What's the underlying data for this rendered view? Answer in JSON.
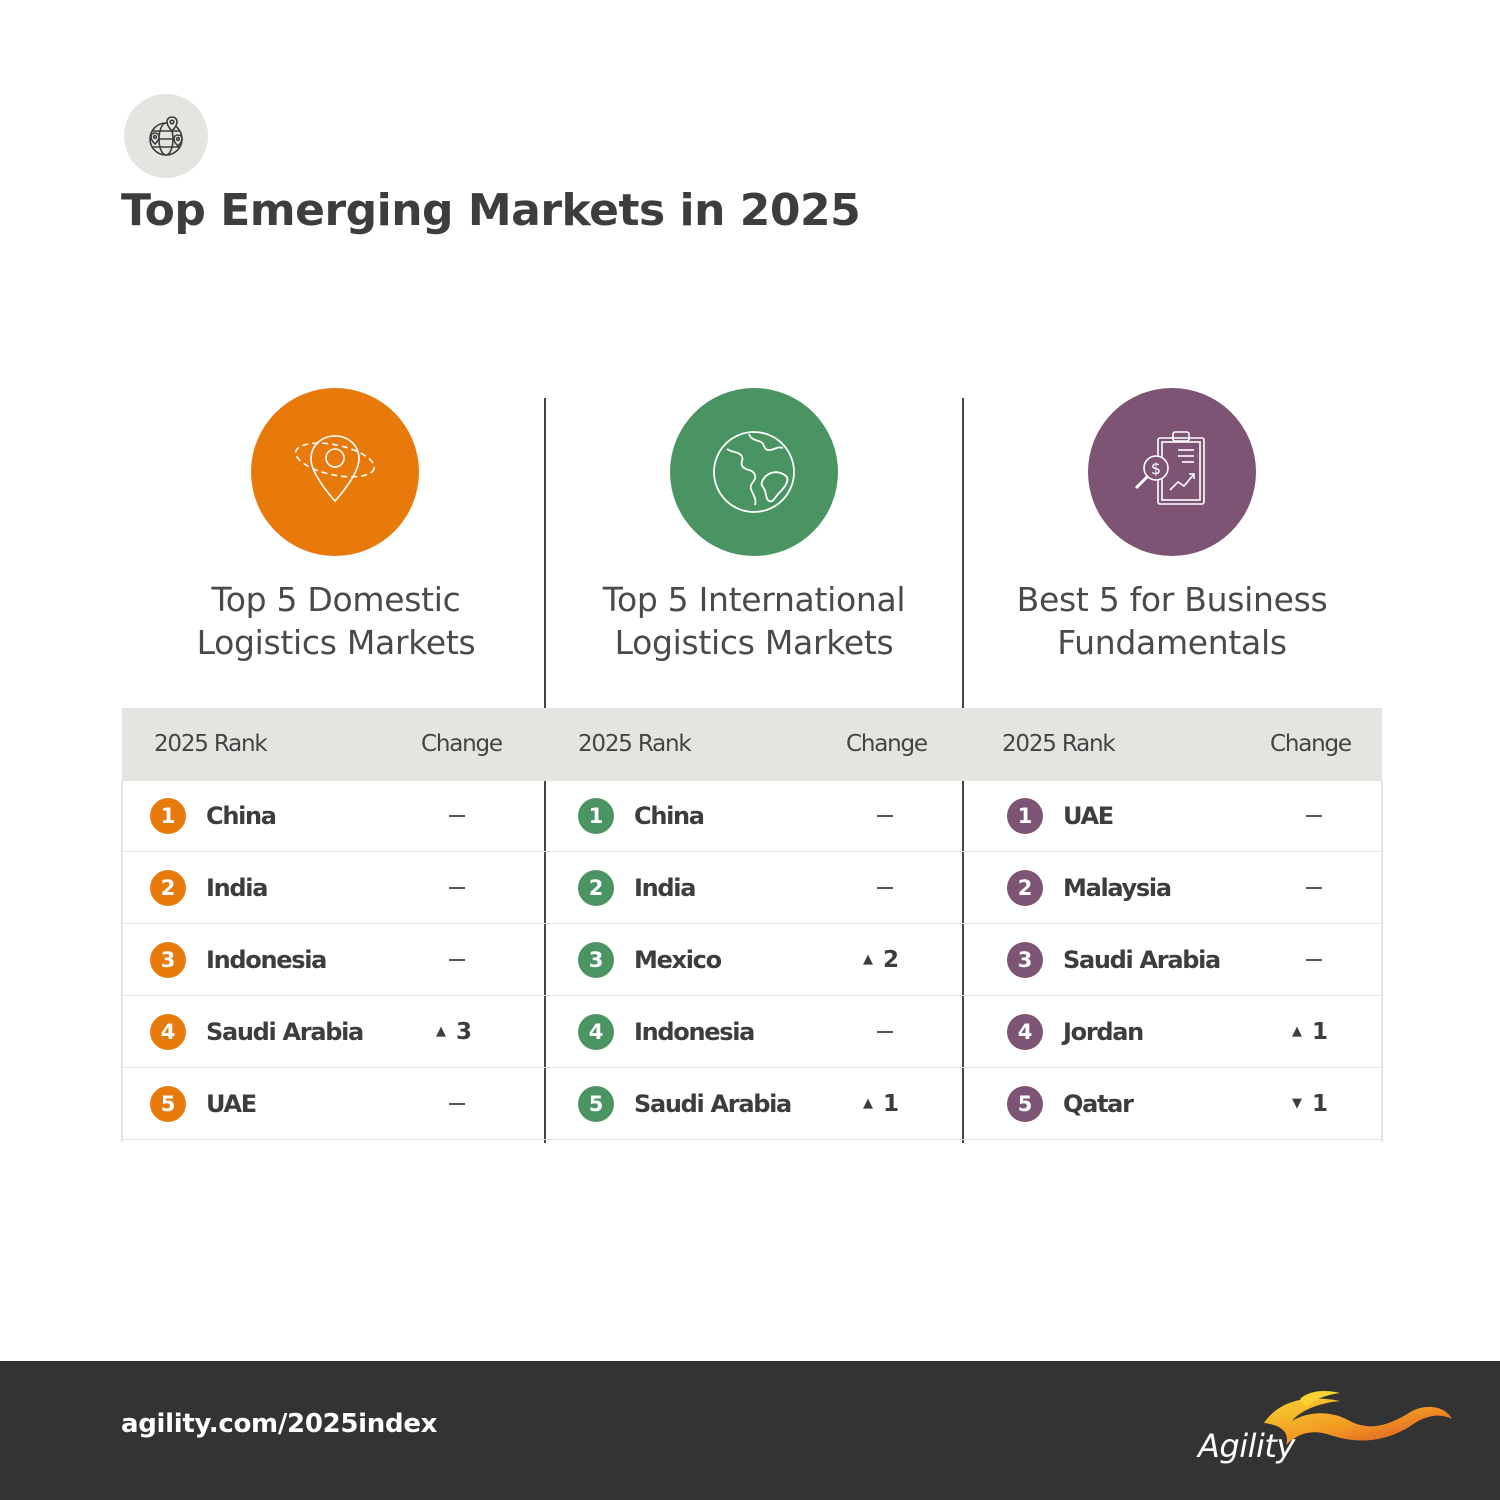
{
  "page": {
    "title": "Top Emerging Markets in 2025"
  },
  "footer": {
    "url": "agility.com/2025index",
    "logo_text": "Agility"
  },
  "columns": [
    {
      "id": "domestic",
      "color": "#e87a0c",
      "icon": "location-pin-orbit-icon",
      "heading_line1": "Top 5 Domestic",
      "heading_line2": "Logistics Markets",
      "rank_header": "2025 Rank",
      "change_header": "Change",
      "rows": [
        {
          "rank": "1",
          "country": "China",
          "change": "none",
          "change_value": ""
        },
        {
          "rank": "2",
          "country": "India",
          "change": "none",
          "change_value": ""
        },
        {
          "rank": "3",
          "country": "Indonesia",
          "change": "none",
          "change_value": ""
        },
        {
          "rank": "4",
          "country": "Saudi Arabia",
          "change": "up",
          "change_value": "3"
        },
        {
          "rank": "5",
          "country": "UAE",
          "change": "none",
          "change_value": ""
        }
      ]
    },
    {
      "id": "international",
      "color": "#4a9363",
      "icon": "globe-icon",
      "heading_line1": "Top 5 International",
      "heading_line2": "Logistics Markets",
      "rank_header": "2025 Rank",
      "change_header": "Change",
      "rows": [
        {
          "rank": "1",
          "country": "China",
          "change": "none",
          "change_value": ""
        },
        {
          "rank": "2",
          "country": "India",
          "change": "none",
          "change_value": ""
        },
        {
          "rank": "3",
          "country": "Mexico",
          "change": "up",
          "change_value": "2"
        },
        {
          "rank": "4",
          "country": "Indonesia",
          "change": "none",
          "change_value": ""
        },
        {
          "rank": "5",
          "country": "Saudi Arabia",
          "change": "up",
          "change_value": "1"
        }
      ]
    },
    {
      "id": "business",
      "color": "#7e5474",
      "icon": "clipboard-analysis-icon",
      "heading_line1": "Best 5 for Business",
      "heading_line2": "Fundamentals",
      "rank_header": "2025 Rank",
      "change_header": "Change",
      "rows": [
        {
          "rank": "1",
          "country": "UAE",
          "change": "none",
          "change_value": ""
        },
        {
          "rank": "2",
          "country": "Malaysia",
          "change": "none",
          "change_value": ""
        },
        {
          "rank": "3",
          "country": "Saudi Arabia",
          "change": "none",
          "change_value": ""
        },
        {
          "rank": "4",
          "country": "Jordan",
          "change": "up",
          "change_value": "1"
        },
        {
          "rank": "5",
          "country": "Qatar",
          "change": "down",
          "change_value": "1"
        }
      ]
    }
  ]
}
